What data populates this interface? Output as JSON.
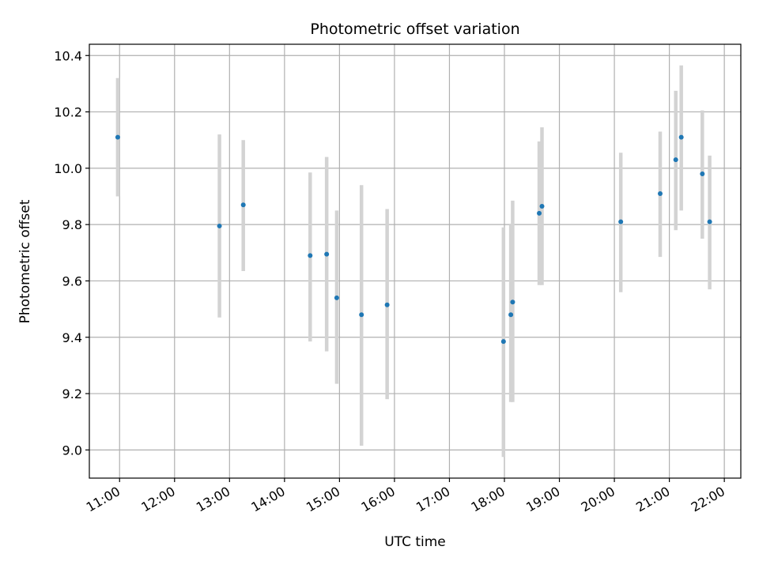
{
  "chart_data": {
    "type": "scatter",
    "title": "Photometric offset variation",
    "xlabel": "UTC time",
    "ylabel": "Photometric offset",
    "x_unit": "UTC time (HH:MM)",
    "xlim": [
      "10:27",
      "22:18"
    ],
    "ylim": [
      8.9,
      10.44
    ],
    "grid": true,
    "x_ticks": [
      "11:00",
      "12:00",
      "13:00",
      "14:00",
      "15:00",
      "16:00",
      "17:00",
      "18:00",
      "19:00",
      "20:00",
      "21:00",
      "22:00"
    ],
    "y_ticks": [
      "9.0",
      "9.2",
      "9.4",
      "9.6",
      "9.8",
      "10.0",
      "10.2",
      "10.4"
    ],
    "colors": {
      "point": "#1f77b4",
      "errorbar": "#d3d3d3",
      "grid": "#b0b0b0"
    },
    "points": [
      {
        "x": "10:58",
        "y": 10.11,
        "ylo": 9.9,
        "yhi": 10.32
      },
      {
        "x": "12:49",
        "y": 9.795,
        "ylo": 9.47,
        "yhi": 10.12
      },
      {
        "x": "13:15",
        "y": 9.87,
        "ylo": 9.635,
        "yhi": 10.1
      },
      {
        "x": "14:28",
        "y": 9.69,
        "ylo": 9.385,
        "yhi": 9.985
      },
      {
        "x": "14:46",
        "y": 9.695,
        "ylo": 9.35,
        "yhi": 10.04
      },
      {
        "x": "14:57",
        "y": 9.54,
        "ylo": 9.235,
        "yhi": 9.85
      },
      {
        "x": "15:24",
        "y": 9.48,
        "ylo": 9.015,
        "yhi": 9.94
      },
      {
        "x": "15:52",
        "y": 9.515,
        "ylo": 9.18,
        "yhi": 9.855
      },
      {
        "x": "17:59",
        "y": 9.385,
        "ylo": 8.975,
        "yhi": 9.79
      },
      {
        "x": "18:07",
        "y": 9.48,
        "ylo": 9.17,
        "yhi": 9.8
      },
      {
        "x": "18:09",
        "y": 9.525,
        "ylo": 9.17,
        "yhi": 9.885
      },
      {
        "x": "18:38",
        "y": 9.84,
        "ylo": 9.585,
        "yhi": 10.095
      },
      {
        "x": "18:41",
        "y": 9.865,
        "ylo": 9.585,
        "yhi": 10.145
      },
      {
        "x": "20:07",
        "y": 9.81,
        "ylo": 9.56,
        "yhi": 10.055
      },
      {
        "x": "20:50",
        "y": 9.91,
        "ylo": 9.685,
        "yhi": 10.13
      },
      {
        "x": "21:07",
        "y": 10.03,
        "ylo": 9.78,
        "yhi": 10.275
      },
      {
        "x": "21:13",
        "y": 10.11,
        "ylo": 9.85,
        "yhi": 10.365
      },
      {
        "x": "21:36",
        "y": 9.98,
        "ylo": 9.75,
        "yhi": 10.205
      },
      {
        "x": "21:44",
        "y": 9.81,
        "ylo": 9.57,
        "yhi": 10.045
      }
    ]
  }
}
